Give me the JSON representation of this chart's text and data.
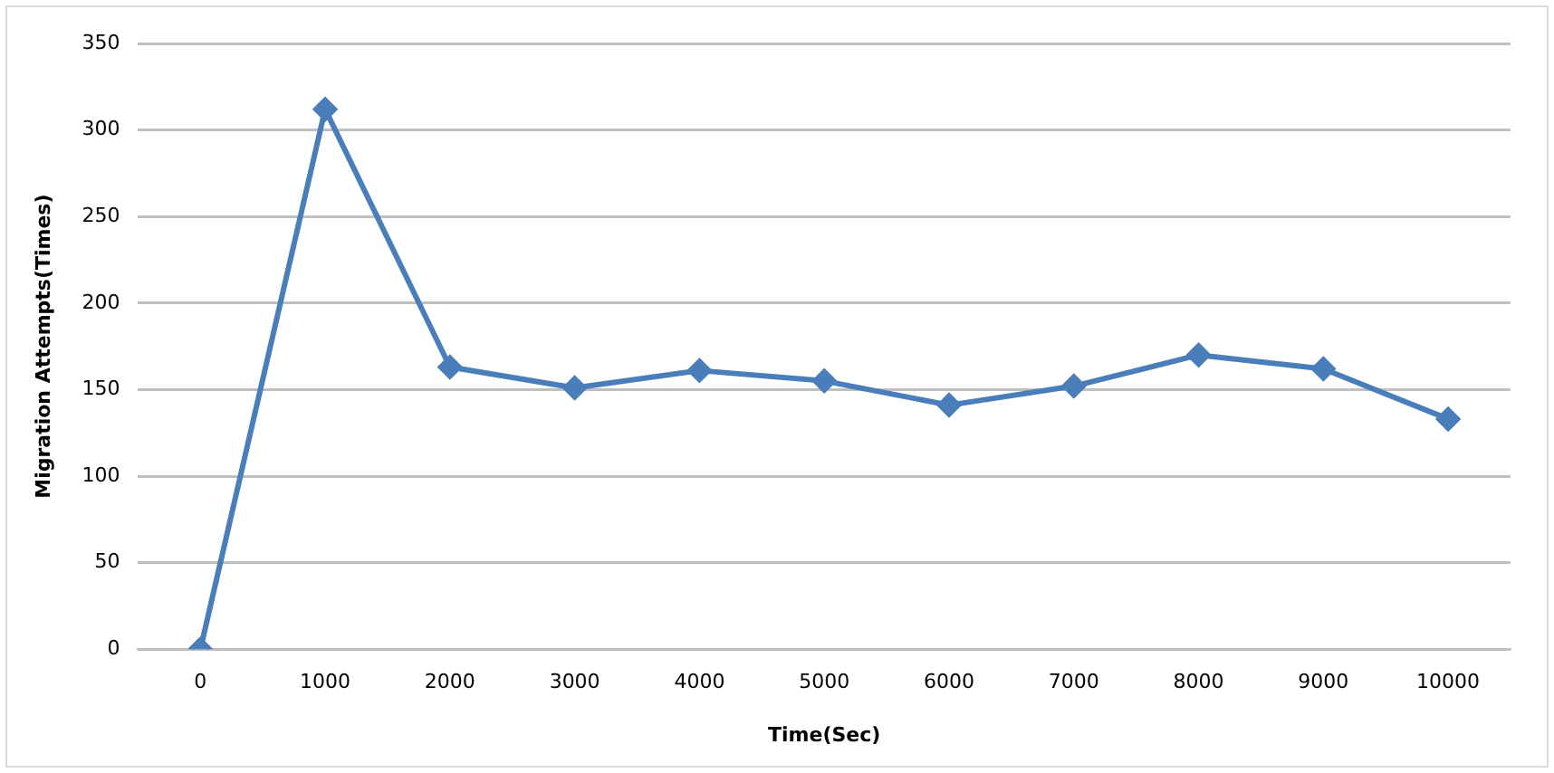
{
  "chart_data": {
    "type": "line",
    "xlabel": "Time(Sec)",
    "ylabel": "Migration Attempts(Times)",
    "categories": [
      "0",
      "1000",
      "2000",
      "3000",
      "4000",
      "5000",
      "6000",
      "7000",
      "8000",
      "9000",
      "10000"
    ],
    "series": [
      {
        "color": "#4a7ebb",
        "values": [
          0,
          312,
          163,
          151,
          161,
          155,
          141,
          152,
          170,
          162,
          133
        ]
      }
    ],
    "ylim": [
      0,
      350
    ],
    "yticks": [
      0,
      50,
      100,
      150,
      200,
      250,
      300,
      350
    ],
    "grid": "y",
    "legend": false,
    "marker": "diamond",
    "line_style": "solid"
  }
}
